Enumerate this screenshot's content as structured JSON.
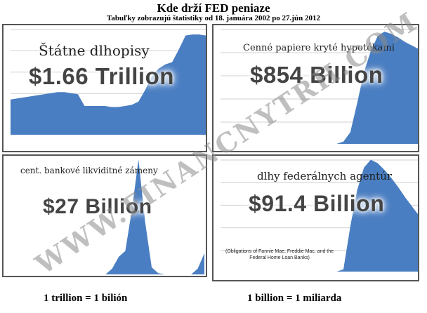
{
  "header": {
    "title": "Kde drží FED peniaze",
    "subtitle": "Tabuľky zobrazujú štatistiky od 18. januára 2002 po 27.jún 2012"
  },
  "panels": [
    {
      "label": "Štátne dlhopisy",
      "value": "$1.66 Trillion",
      "note": ""
    },
    {
      "label": "Cenné papiere kryté hypotékami",
      "value": "$854 Billion",
      "note": ""
    },
    {
      "label": "cent. bankové likviditné zámeny",
      "value": "$27 Billion",
      "note": ""
    },
    {
      "label": "dlhy federálnych agentúr",
      "value": "$91.4 Billion",
      "note": "(Obligations of Fannie Mae, Freddie Mac, and the Federal Home Loan Banks)"
    }
  ],
  "footer": {
    "left": "1 trillion = 1 bilión",
    "right": "1 billion = 1 miliarda"
  },
  "watermark": "WWW.FINANCNYTRH.COM",
  "colors": {
    "fill": "#4a7ec2",
    "grid": "#d0d0d0",
    "border": "#555555"
  },
  "chart_data": [
    {
      "type": "area",
      "title": "Štátne dlhopisy",
      "value_label": "$1.66 Trillion",
      "x_range": [
        0,
        1
      ],
      "ylim": [
        0,
        1
      ],
      "grid": true,
      "values": [
        0.33,
        0.34,
        0.35,
        0.36,
        0.37,
        0.38,
        0.39,
        0.4,
        0.4,
        0.39,
        0.38,
        0.27,
        0.27,
        0.27,
        0.27,
        0.26,
        0.26,
        0.27,
        0.28,
        0.31,
        0.42,
        0.55,
        0.62,
        0.66,
        0.68,
        0.8,
        0.93,
        0.94,
        0.94,
        0.93
      ]
    },
    {
      "type": "area",
      "title": "Cenné papiere kryté hypotékami",
      "value_label": "$854 Billion",
      "x_range": [
        0,
        1
      ],
      "ylim": [
        0,
        1
      ],
      "grid": true,
      "values": [
        0,
        0,
        0,
        0,
        0,
        0,
        0,
        0,
        0,
        0,
        0,
        0,
        0,
        0,
        0,
        0,
        0,
        0,
        0.02,
        0.1,
        0.35,
        0.62,
        0.8,
        0.93,
        0.97,
        0.95,
        0.92,
        0.88,
        0.85,
        0.82
      ]
    },
    {
      "type": "area",
      "title": "cent. bankové likviditné zámeny",
      "value_label": "$27 Billion",
      "x_range": [
        0,
        1
      ],
      "ylim": [
        0,
        1
      ],
      "grid": false,
      "values": [
        0,
        0,
        0,
        0,
        0,
        0,
        0,
        0,
        0,
        0,
        0,
        0,
        0,
        0,
        0,
        0.05,
        0.15,
        0.2,
        0.55,
        0.98,
        0.45,
        0.06,
        0.01,
        0,
        0,
        0,
        0,
        0,
        0.05,
        0.18
      ]
    },
    {
      "type": "area",
      "title": "dlhy federálnych agentúr",
      "value_label": "$91.4 Billion",
      "x_range": [
        0,
        1
      ],
      "ylim": [
        0,
        1
      ],
      "grid": true,
      "values": [
        0,
        0,
        0,
        0,
        0,
        0,
        0,
        0,
        0,
        0,
        0,
        0,
        0,
        0,
        0,
        0,
        0,
        0,
        0.02,
        0.4,
        0.72,
        0.92,
        0.99,
        0.96,
        0.9,
        0.83,
        0.75,
        0.66,
        0.58,
        0.5
      ]
    }
  ]
}
